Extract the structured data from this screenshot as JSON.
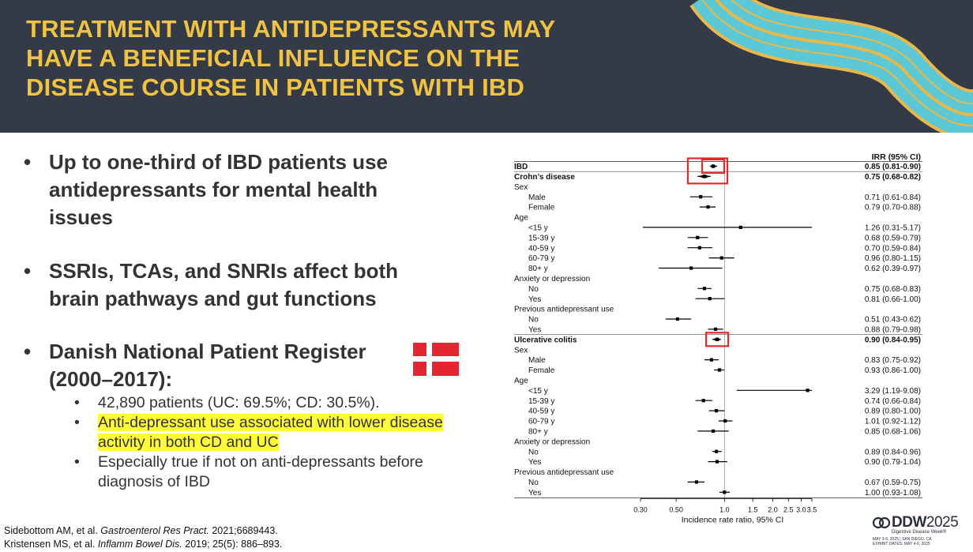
{
  "slide": {
    "title_lines": [
      "TREATMENT WITH ANTIDEPRESSANTS MAY",
      "HAVE A BENEFICIAL INFLUENCE ON THE",
      "DISEASE COURSE IN PATIENTS WITH IBD"
    ],
    "bullets": [
      {
        "lines": [
          "Up to one-third of IBD patients use",
          "antidepressants for mental health",
          "issues"
        ]
      },
      {
        "lines": [
          "SSRIs, TCAs, and SNRIs affect both",
          "brain pathways and gut functions"
        ]
      },
      {
        "lines": [
          "Danish National Patient Register",
          "(2000–2017):"
        ],
        "subs": [
          {
            "lines": [
              "42,890 patients (UC: 69.5%; CD: 30.5%)."
            ],
            "highlight": false
          },
          {
            "lines": [
              "Anti-depressant use associated with lower disease",
              "activity in both CD and UC"
            ],
            "highlight": true
          },
          {
            "lines": [
              "Especially true if not on anti-depressants before",
              "diagnosis of IBD"
            ],
            "highlight": false
          }
        ]
      }
    ],
    "references": [
      {
        "authors": "Sidebottom AM, et al. ",
        "journal": "Gastroenterol Res Pract.",
        "details": " 2021;6689443."
      },
      {
        "authors": "Kristensen MS, et al. ",
        "journal": "Inflamm Bowel Dis.",
        "details": " 2019; 25(5): 886–893."
      }
    ],
    "logo": {
      "name": "DDW",
      "year": "2025",
      "tagline": "Digestive Disease Week®",
      "dates_line1": "MAY 3-6, 2025 | SAN DIEGO, CA",
      "dates_line2": "EXHIBIT DATES: MAY 4-6, 2025"
    },
    "colors": {
      "header_bg": "#343a46",
      "title": "#f1c342",
      "wave_teal": "#5cc8d6",
      "wave_gold": "#e9b84a",
      "highlight": "#fffc3a",
      "flag_red": "#e3262f",
      "box_red": "#e32b2b"
    }
  },
  "chart_data": {
    "type": "forest",
    "column_header": "IRR (95% CI)",
    "xlabel": "Incidence rate ratio, 95% CI",
    "x_scale": "log",
    "xlim": [
      0.3,
      3.5
    ],
    "ticks": [
      0.3,
      0.5,
      1.0,
      1.5,
      2.0,
      2.5,
      3.0,
      3.5
    ],
    "tick_labels": [
      "0.30",
      "0.50",
      "1.0",
      "1.5",
      "2.0",
      "2.5",
      "3.0",
      "3.5"
    ],
    "reference_line": 1.0,
    "highlighted_rows": [
      "IBD",
      "Crohn's disease",
      "Ulcerative colitis"
    ],
    "rows": [
      {
        "label": "IBD",
        "level": 0,
        "bold": true,
        "est": 0.85,
        "lo": 0.81,
        "hi": 0.9,
        "ci_text": "0.85 (0.81-0.90)",
        "marker": "diamond"
      },
      {
        "label": "Crohn’s disease",
        "level": 0,
        "bold": true,
        "est": 0.75,
        "lo": 0.68,
        "hi": 0.82,
        "ci_text": "0.75 (0.68-0.82)",
        "marker": "diamond"
      },
      {
        "label": "Sex",
        "level": 1
      },
      {
        "label": "Male",
        "level": 2,
        "est": 0.71,
        "lo": 0.61,
        "hi": 0.84,
        "ci_text": "0.71 (0.61-0.84)"
      },
      {
        "label": "Female",
        "level": 2,
        "est": 0.79,
        "lo": 0.7,
        "hi": 0.88,
        "ci_text": "0.79 (0.70-0.88)"
      },
      {
        "label": "Age",
        "level": 1
      },
      {
        "label": "<15 y",
        "level": 2,
        "est": 1.26,
        "lo": 0.31,
        "hi": 5.17,
        "ci_text": "1.26 (0.31-5.17)"
      },
      {
        "label": "15-39 y",
        "level": 2,
        "est": 0.68,
        "lo": 0.59,
        "hi": 0.79,
        "ci_text": "0.68 (0.59-0.79)"
      },
      {
        "label": "40-59 y",
        "level": 2,
        "est": 0.7,
        "lo": 0.59,
        "hi": 0.84,
        "ci_text": "0.70 (0.59-0.84)"
      },
      {
        "label": "60-79 y",
        "level": 2,
        "est": 0.96,
        "lo": 0.8,
        "hi": 1.15,
        "ci_text": "0.96 (0.80-1.15)"
      },
      {
        "label": "80+ y",
        "level": 2,
        "est": 0.62,
        "lo": 0.39,
        "hi": 0.97,
        "ci_text": "0.62 (0.39-0.97)"
      },
      {
        "label": "Anxiety or depression",
        "level": 1
      },
      {
        "label": "No",
        "level": 2,
        "est": 0.75,
        "lo": 0.68,
        "hi": 0.83,
        "ci_text": "0.75 (0.68-0.83)"
      },
      {
        "label": "Yes",
        "level": 2,
        "est": 0.81,
        "lo": 0.66,
        "hi": 1.0,
        "ci_text": "0.81 (0.66-1.00)"
      },
      {
        "label": "Previous antidepressant use",
        "level": 1
      },
      {
        "label": "No",
        "level": 2,
        "est": 0.51,
        "lo": 0.43,
        "hi": 0.62,
        "ci_text": "0.51 (0.43-0.62)"
      },
      {
        "label": "Yes",
        "level": 2,
        "est": 0.88,
        "lo": 0.79,
        "hi": 0.98,
        "ci_text": "0.88 (0.79-0.98)"
      },
      {
        "label": "Ulcerative colitis",
        "level": 0,
        "bold": true,
        "est": 0.9,
        "lo": 0.84,
        "hi": 0.95,
        "ci_text": "0.90 (0.84-0.95)",
        "marker": "diamond"
      },
      {
        "label": "Sex",
        "level": 1
      },
      {
        "label": "Male",
        "level": 2,
        "est": 0.83,
        "lo": 0.75,
        "hi": 0.92,
        "ci_text": "0.83 (0.75-0.92)"
      },
      {
        "label": "Female",
        "level": 2,
        "est": 0.93,
        "lo": 0.86,
        "hi": 1.0,
        "ci_text": "0.93 (0.86-1.00)"
      },
      {
        "label": "Age",
        "level": 1
      },
      {
        "label": "<15 y",
        "level": 2,
        "est": 3.29,
        "lo": 1.19,
        "hi": 9.08,
        "ci_text": "3.29 (1.19-9.08)"
      },
      {
        "label": "15-39 y",
        "level": 2,
        "est": 0.74,
        "lo": 0.66,
        "hi": 0.84,
        "ci_text": "0.74 (0.66-0.84)"
      },
      {
        "label": "40-59 y",
        "level": 2,
        "est": 0.89,
        "lo": 0.8,
        "hi": 1.0,
        "ci_text": "0.89 (0.80-1.00)"
      },
      {
        "label": "60-79 y",
        "level": 2,
        "est": 1.01,
        "lo": 0.92,
        "hi": 1.12,
        "ci_text": "1.01 (0.92-1.12)"
      },
      {
        "label": "80+ y",
        "level": 2,
        "est": 0.85,
        "lo": 0.68,
        "hi": 1.06,
        "ci_text": "0.85 (0.68-1.06)"
      },
      {
        "label": "Anxiety or depression",
        "level": 1
      },
      {
        "label": "No",
        "level": 2,
        "est": 0.89,
        "lo": 0.84,
        "hi": 0.96,
        "ci_text": "0.89 (0.84-0.96)"
      },
      {
        "label": "Yes",
        "level": 2,
        "est": 0.9,
        "lo": 0.79,
        "hi": 1.04,
        "ci_text": "0.90 (0.79-1.04)"
      },
      {
        "label": "Previous antidepressant use",
        "level": 1
      },
      {
        "label": "No",
        "level": 2,
        "est": 0.67,
        "lo": 0.59,
        "hi": 0.75,
        "ci_text": "0.67 (0.59-0.75)"
      },
      {
        "label": "Yes",
        "level": 2,
        "est": 1.0,
        "lo": 0.93,
        "hi": 1.08,
        "ci_text": "1.00 (0.93-1.08)"
      }
    ]
  }
}
